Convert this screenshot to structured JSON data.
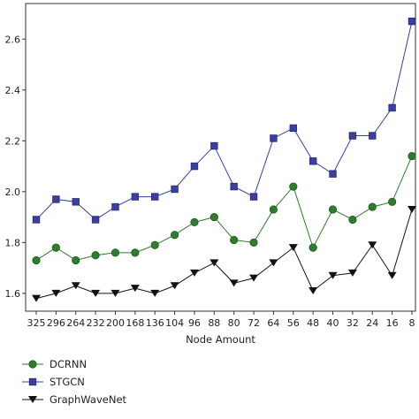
{
  "chart_data": {
    "type": "line",
    "title": "",
    "xlabel": "Node Amount",
    "ylabel": "",
    "categories": [
      "325",
      "296",
      "264",
      "232",
      "200",
      "168",
      "136",
      "104",
      "96",
      "88",
      "80",
      "72",
      "64",
      "56",
      "48",
      "40",
      "32",
      "24",
      "16",
      "8"
    ],
    "ylim": [
      1.53,
      2.74
    ],
    "yticks": [
      1.6,
      1.8,
      2.0,
      2.2,
      2.4,
      2.6
    ],
    "ytick_labels": [
      "1.6",
      "1.8",
      "2.0",
      "2.2",
      "2.4",
      "2.6"
    ],
    "grid": false,
    "legend_position": "bottom-left",
    "series": [
      {
        "name": "DCRNN",
        "color": "#2e7d2e",
        "marker": "circle",
        "values": [
          1.73,
          1.78,
          1.73,
          1.75,
          1.76,
          1.76,
          1.79,
          1.83,
          1.88,
          1.9,
          1.81,
          1.8,
          1.93,
          2.02,
          1.78,
          1.93,
          1.89,
          1.94,
          1.96,
          2.14
        ]
      },
      {
        "name": "STGCN",
        "color": "#3a3fa0",
        "marker": "square",
        "values": [
          1.89,
          1.97,
          1.96,
          1.89,
          1.94,
          1.98,
          1.98,
          2.01,
          2.1,
          2.18,
          2.02,
          1.98,
          2.21,
          2.25,
          2.12,
          2.07,
          2.22,
          2.22,
          2.33,
          2.67
        ]
      },
      {
        "name": "GraphWaveNet",
        "color": "#111111",
        "marker": "triangle-down",
        "values": [
          1.58,
          1.6,
          1.63,
          1.6,
          1.6,
          1.62,
          1.6,
          1.63,
          1.68,
          1.72,
          1.64,
          1.66,
          1.72,
          1.78,
          1.61,
          1.67,
          1.68,
          1.79,
          1.67,
          1.93
        ]
      }
    ]
  }
}
